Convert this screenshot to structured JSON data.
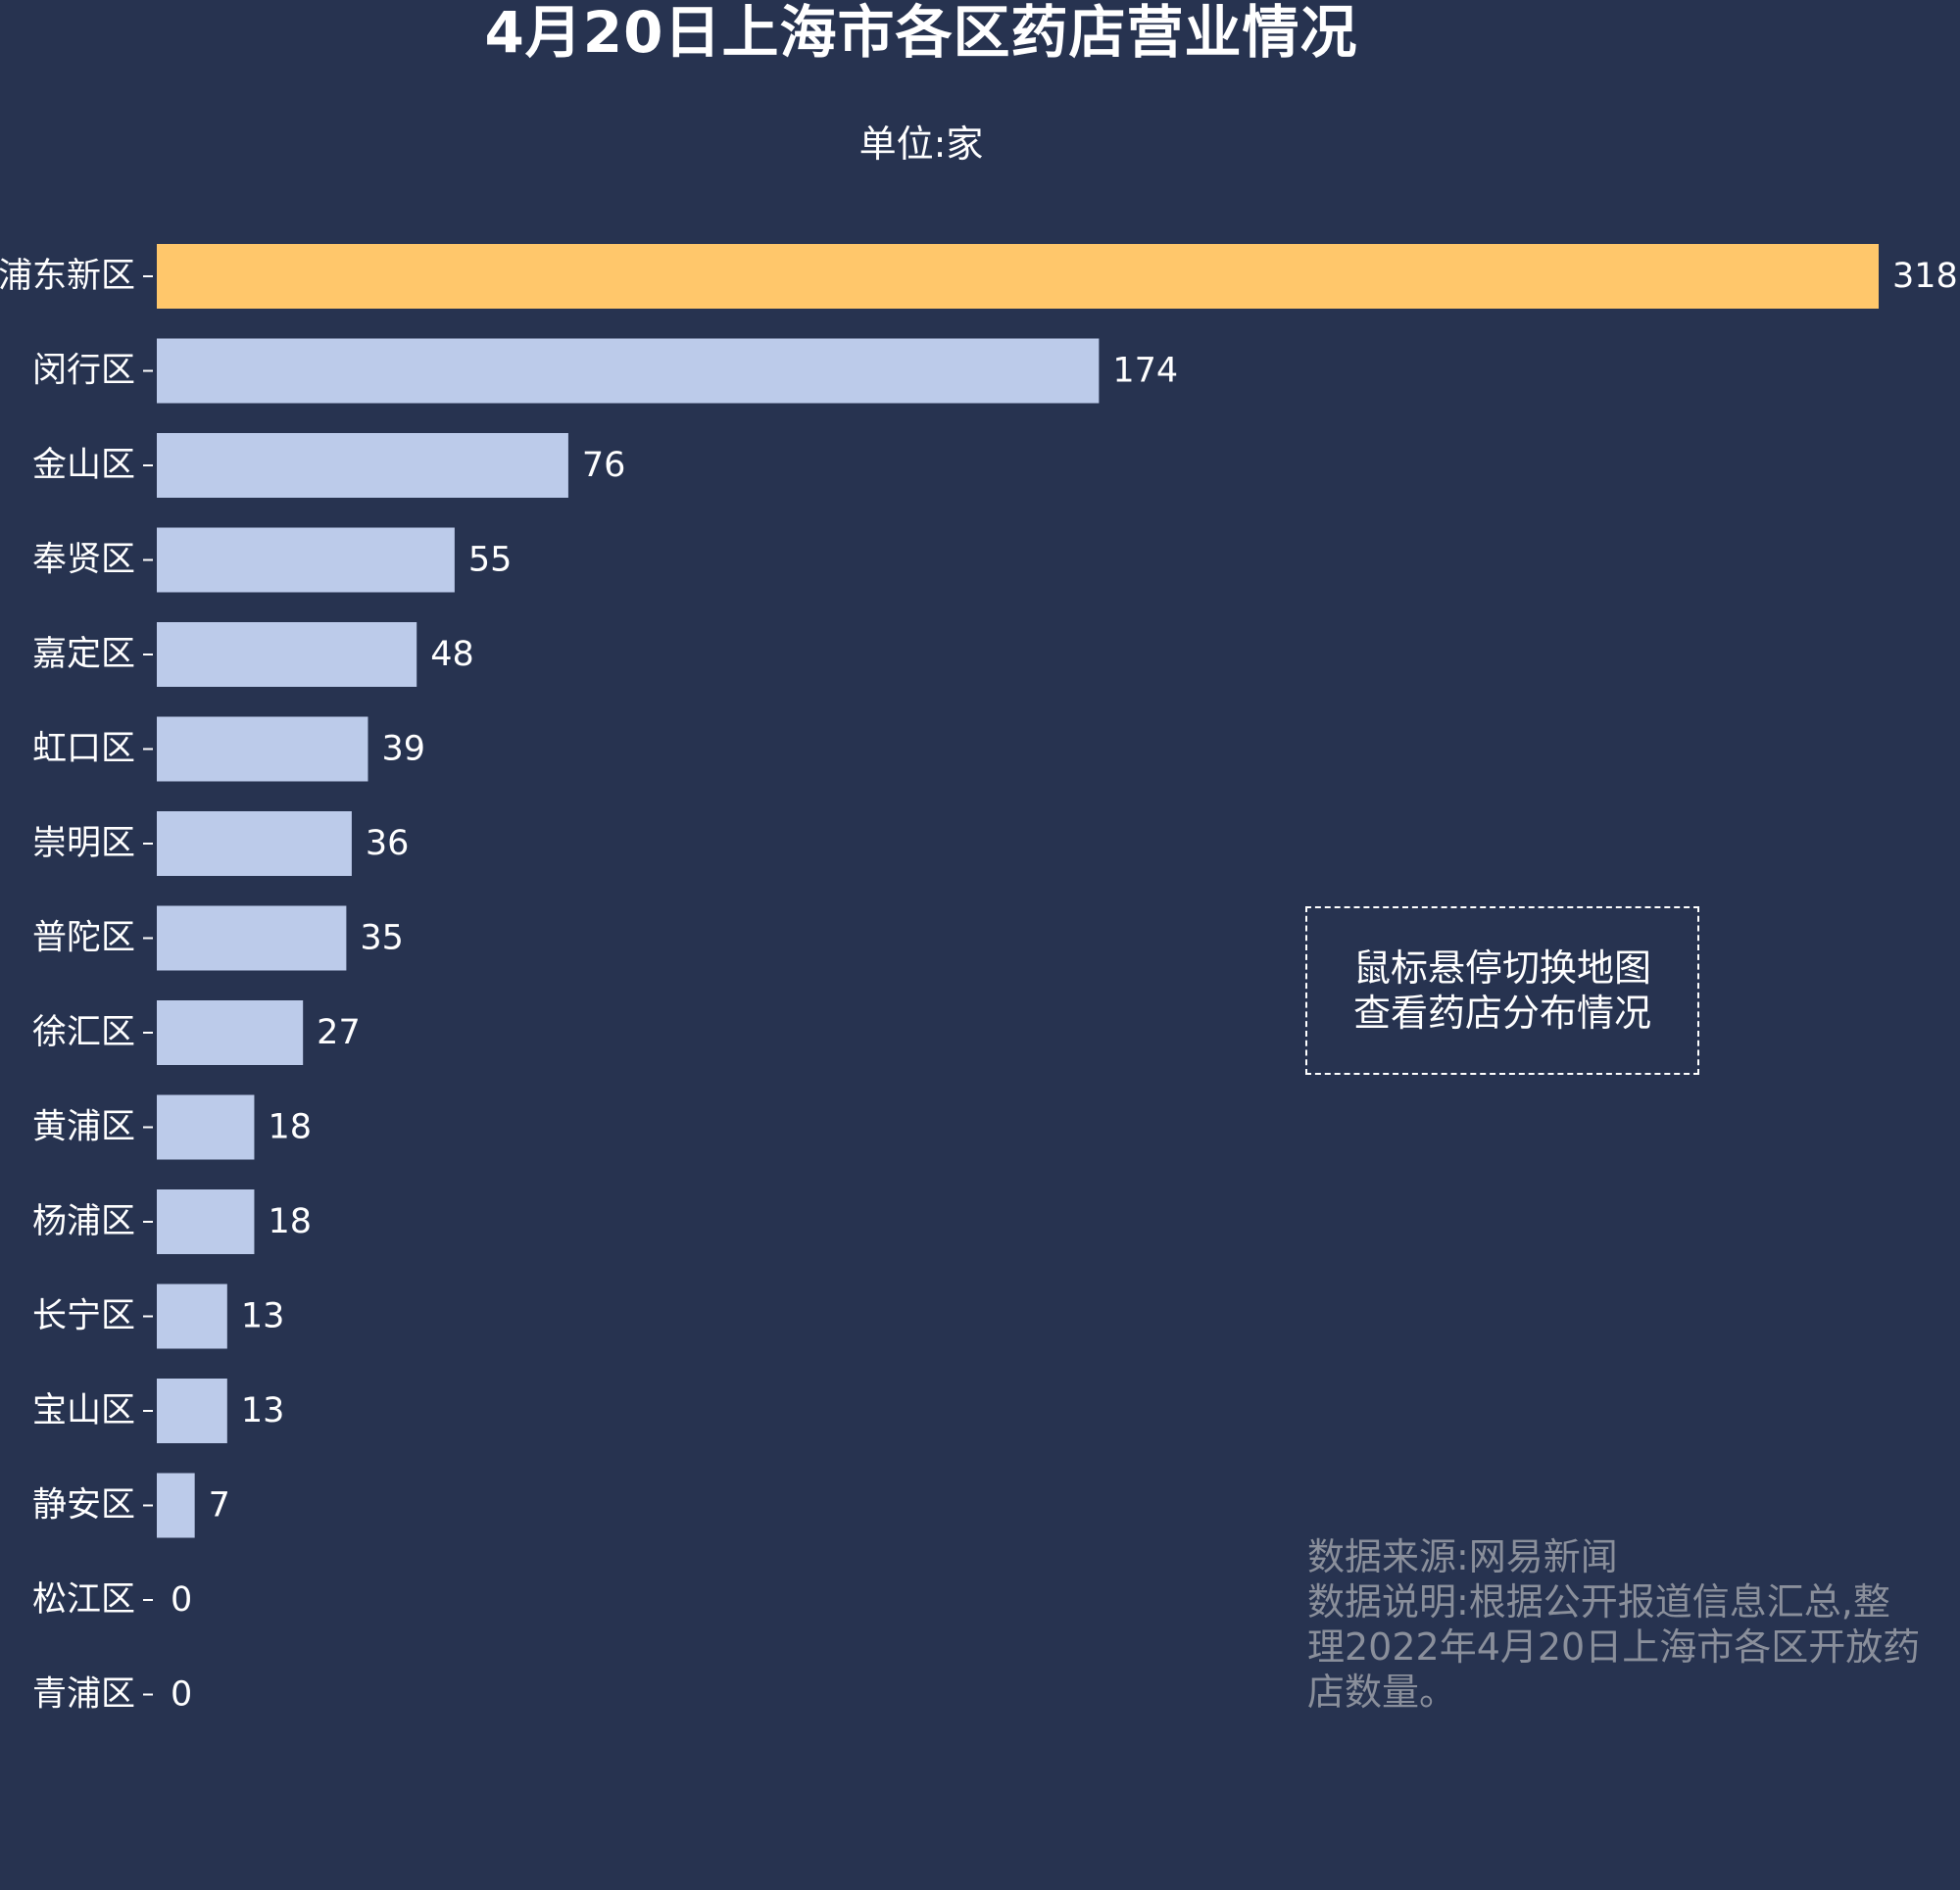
{
  "chart_data": {
    "type": "bar",
    "orientation": "horizontal",
    "title": "4月20日上海市各区药店营业情况",
    "subtitle": "单位:家",
    "categories": [
      "浦东新区",
      "闵行区",
      "金山区",
      "奉贤区",
      "嘉定区",
      "虹口区",
      "崇明区",
      "普陀区",
      "徐汇区",
      "黄浦区",
      "杨浦区",
      "长宁区",
      "宝山区",
      "静安区",
      "松江区",
      "青浦区"
    ],
    "values": [
      318,
      174,
      76,
      55,
      48,
      39,
      36,
      35,
      27,
      18,
      18,
      13,
      13,
      7,
      0,
      0
    ],
    "value_labels": [
      "318",
      "174",
      "76",
      "55",
      "48",
      "39",
      "36",
      "35",
      "27",
      "18",
      "18",
      "13",
      "13",
      "7",
      "0",
      "0"
    ],
    "xlim": [
      0,
      318
    ],
    "grid": false,
    "legend": "none",
    "colors": {
      "background": "#273350",
      "bar": "#bccbea",
      "highlight": "#ffc76b",
      "text": "#ffffff"
    },
    "highlight_index": 0
  },
  "hint": {
    "line1": "鼠标悬停切换地图",
    "line2": "查看药店分布情况"
  },
  "note": {
    "source": "数据来源:网易新闻",
    "line1": "数据说明:根据公开报道信息汇总,整",
    "line2": "理2022年4月20日上海市各区开放药",
    "line3": "店数量。"
  }
}
